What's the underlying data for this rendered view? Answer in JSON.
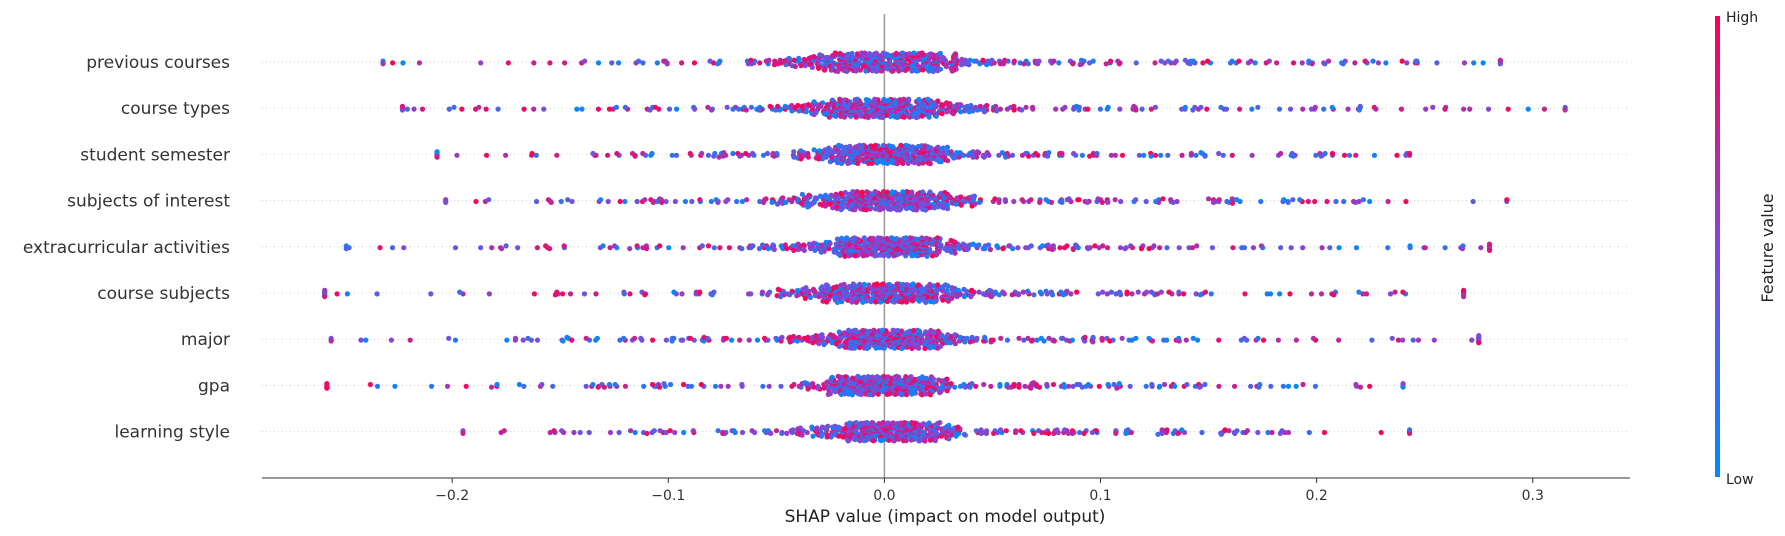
{
  "chart_data": {
    "type": "scatter",
    "subtype": "shap-beeswarm",
    "xlabel": "SHAP value (impact on model output)",
    "xlim": [
      -0.288,
      0.345
    ],
    "x_ticks": [
      -0.2,
      -0.1,
      0.0,
      0.1,
      0.2,
      0.3
    ],
    "x_tick_labels": [
      "−0.2",
      "−0.1",
      "0.0",
      "0.1",
      "0.2",
      "0.3"
    ],
    "features": [
      {
        "name": "previous courses",
        "min": -0.232,
        "max": 0.285,
        "sd": 0.04
      },
      {
        "name": "course types",
        "min": -0.223,
        "max": 0.315,
        "sd": 0.036
      },
      {
        "name": "student semester",
        "min": -0.207,
        "max": 0.243,
        "sd": 0.032
      },
      {
        "name": "subjects of interest",
        "min": -0.203,
        "max": 0.288,
        "sd": 0.036
      },
      {
        "name": "extracurricular activities",
        "min": -0.249,
        "max": 0.28,
        "sd": 0.034
      },
      {
        "name": "course subjects",
        "min": -0.259,
        "max": 0.268,
        "sd": 0.036
      },
      {
        "name": "major",
        "min": -0.256,
        "max": 0.275,
        "sd": 0.033
      },
      {
        "name": "gpa",
        "min": -0.258,
        "max": 0.24,
        "sd": 0.028
      },
      {
        "name": "learning style",
        "min": -0.195,
        "max": 0.243,
        "sd": 0.03
      }
    ],
    "colorbar": {
      "label": "Feature value",
      "high_label": "High",
      "low_label": "Low",
      "high_color": "#ff0052",
      "low_color": "#008bfb"
    },
    "zero_line_color": "#999999",
    "grid": false
  }
}
